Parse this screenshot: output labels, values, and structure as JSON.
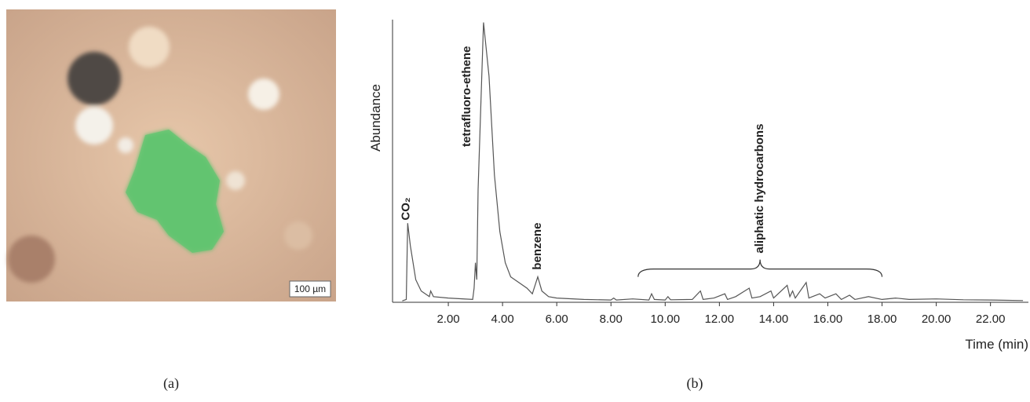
{
  "photo": {
    "scale_bar": "100 µm"
  },
  "captions": [
    "(a)",
    "(b)"
  ],
  "chart_data": {
    "type": "line",
    "y_label": "Abundance",
    "x_label": "Time (min)",
    "color": "#555555",
    "xlim": [
      0,
      23.4
    ],
    "ylim": [
      0,
      100
    ],
    "xticks": [
      {
        "value": 2,
        "label": "2.00"
      },
      {
        "value": 4,
        "label": "4.00"
      },
      {
        "value": 6,
        "label": "6.00"
      },
      {
        "value": 8,
        "label": "8.00"
      },
      {
        "value": 10,
        "label": "10.00"
      },
      {
        "value": 12,
        "label": "12.00"
      },
      {
        "value": 14,
        "label": "14.00"
      },
      {
        "value": 16,
        "label": "16.00"
      },
      {
        "value": 18,
        "label": "18.00"
      },
      {
        "value": 20,
        "label": "20.00"
      },
      {
        "value": 22,
        "label": "22.00"
      }
    ],
    "x": [
      0.3,
      0.45,
      0.5,
      0.6,
      0.8,
      1.0,
      1.3,
      1.35,
      1.45,
      2.0,
      2.9,
      2.95,
      3.0,
      3.05,
      3.1,
      3.3,
      3.5,
      3.7,
      3.9,
      4.1,
      4.3,
      4.6,
      4.9,
      5.1,
      5.3,
      5.45,
      5.7,
      6.0,
      7.0,
      8.0,
      8.1,
      8.2,
      8.8,
      9.4,
      9.5,
      9.6,
      10.0,
      10.1,
      10.2,
      11.0,
      11.3,
      11.4,
      11.8,
      12.2,
      12.3,
      12.6,
      13.1,
      13.2,
      13.5,
      13.9,
      14.0,
      14.5,
      14.6,
      14.7,
      14.8,
      15.2,
      15.3,
      15.7,
      15.9,
      16.3,
      16.5,
      16.8,
      17.0,
      17.5,
      18.0,
      18.5,
      19.0,
      20.0,
      21.0,
      22.0,
      23.2
    ],
    "values": [
      0.5,
      1,
      28,
      20,
      8,
      4,
      2,
      4,
      2,
      1.5,
      1,
      5,
      14,
      8,
      40,
      99,
      80,
      45,
      25,
      14,
      9,
      7,
      5,
      3,
      9,
      4,
      2,
      1.5,
      1,
      0.8,
      1.5,
      0.8,
      1.2,
      0.8,
      3,
      1,
      0.8,
      2,
      0.9,
      1,
      4,
      1,
      1.5,
      3,
      1,
      2,
      5,
      1.5,
      2,
      4,
      1.5,
      6,
      2,
      4,
      1.5,
      7,
      1.5,
      3,
      1.5,
      3,
      1,
      2.5,
      1,
      2,
      1,
      1.5,
      1,
      1.2,
      0.9,
      0.8,
      0.6
    ],
    "annotations": [
      {
        "text": "CO₂",
        "x": 0.45,
        "y": 29
      },
      {
        "text": "tetrafluoro-ethene",
        "x": 2.7,
        "y": 55
      },
      {
        "text": "benzene",
        "x": 5.3,
        "y": 11.5
      }
    ],
    "bracket": {
      "text": "aliphatic hydrocarbons",
      "x": [
        9,
        18
      ],
      "y": 9
    }
  }
}
